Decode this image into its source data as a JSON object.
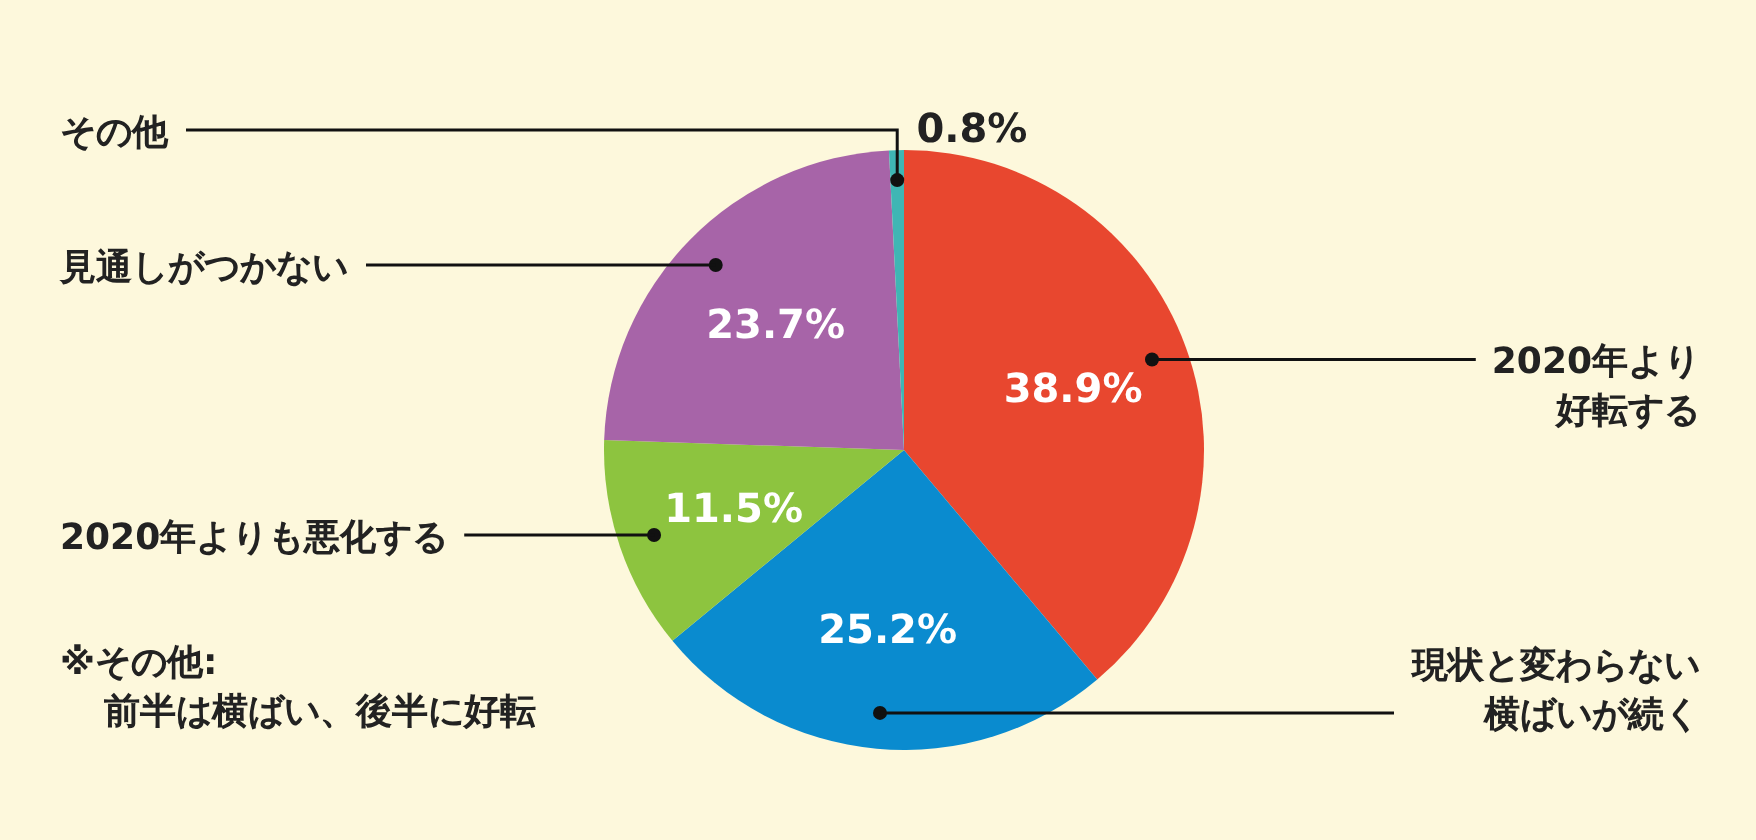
{
  "chart_data": {
    "type": "pie",
    "categories": [
      "2020年より好転する",
      "現状と変わらない横ばいが続く",
      "2020年よりも悪化する",
      "見通しがつかない",
      "その他"
    ],
    "values": [
      38.9,
      25.2,
      11.5,
      23.7,
      0.8
    ],
    "colors": [
      "#e8472f",
      "#0a8bcf",
      "#8dc43f",
      "#a764a8",
      "#3fb6b4"
    ],
    "value_labels": [
      "38.9%",
      "25.2%",
      "11.5%",
      "23.7%",
      "0.8%"
    ],
    "annotations": [
      "※その他:\n前半は横ばい、後半に好転"
    ]
  }
}
